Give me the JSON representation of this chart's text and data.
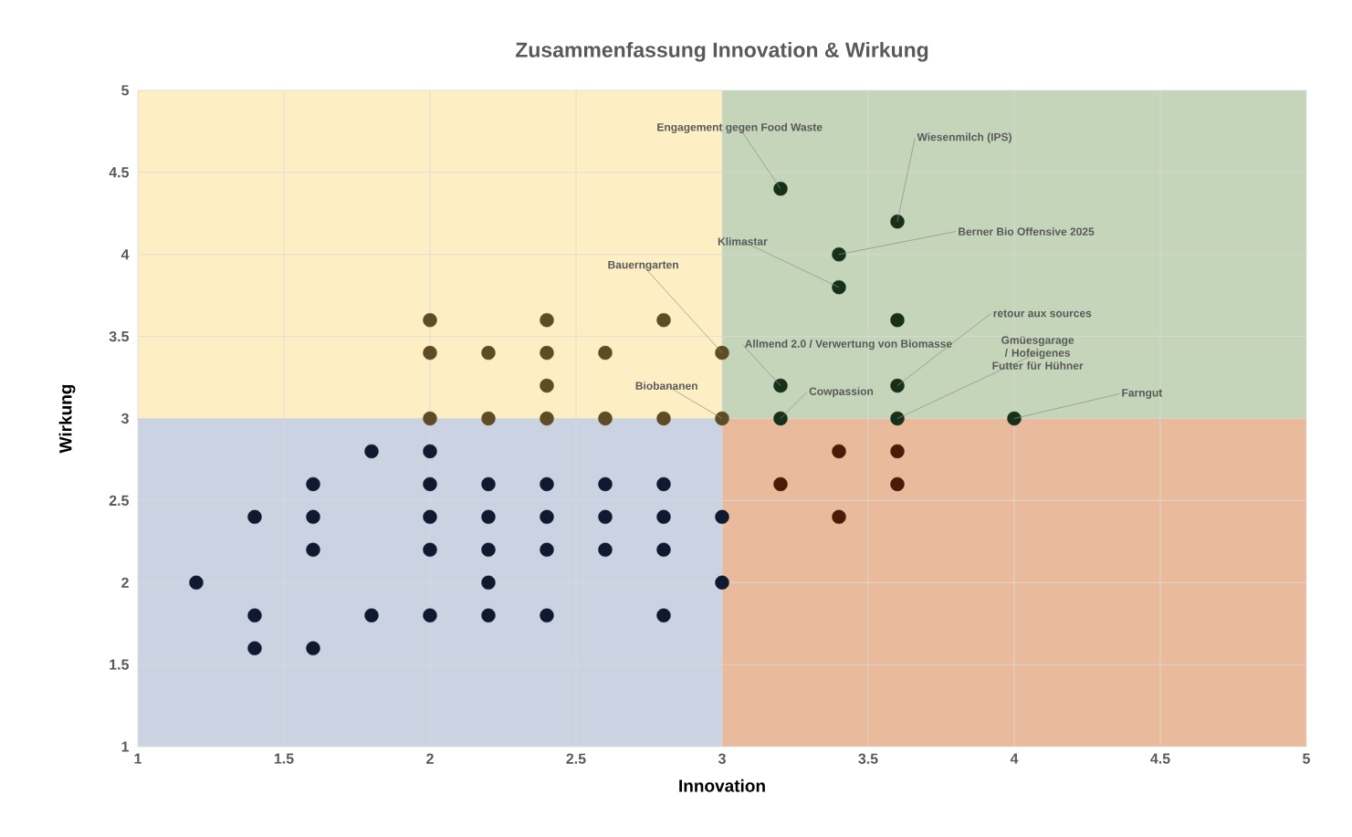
{
  "chart_data": {
    "type": "scatter",
    "title": "Zusammenfassung Innovation & Wirkung",
    "xlabel": "Innovation",
    "ylabel": "Wirkung",
    "xlim": [
      1,
      5
    ],
    "ylim": [
      1,
      5
    ],
    "xticks": [
      1,
      1.5,
      2,
      2.5,
      3,
      3.5,
      4,
      4.5,
      5
    ],
    "yticks": [
      1,
      1.5,
      2,
      2.5,
      3,
      3.5,
      4,
      4.5,
      5
    ],
    "grid": true,
    "series": [
      {
        "type": "area",
        "marker": "none",
        "color": "#fdefc3",
        "x": [
          1,
          3
        ],
        "values": [
          5,
          5
        ]
      },
      {
        "type": "area",
        "marker": "none",
        "color": "#cbd3e3",
        "x": [
          1,
          3
        ],
        "values": [
          3,
          3
        ]
      },
      {
        "type": "area",
        "marker": "none",
        "color": "#c5d5b9",
        "x": [
          3,
          5
        ],
        "values": [
          5,
          5
        ]
      },
      {
        "type": "area",
        "marker": "none",
        "color": "#e9bb9c",
        "x": [
          3,
          5
        ],
        "values": [
          3,
          3
        ]
      },
      {
        "type": "scatter",
        "marker": "circle",
        "color": "#0f1a30",
        "x": [
          1.2,
          1.4,
          1.4,
          1.4,
          1.6,
          1.6,
          1.6,
          1.6,
          1.8,
          1.8,
          2.0,
          2.0,
          2.0,
          2.0,
          2.0,
          2.2,
          2.2,
          2.2,
          2.2,
          2.2,
          2.4,
          2.4,
          2.4,
          2.4,
          2.6,
          2.6,
          2.6,
          2.8,
          2.8,
          2.8,
          2.8,
          3.0,
          3.0
        ],
        "values": [
          2.0,
          2.4,
          1.8,
          1.6,
          2.6,
          2.4,
          2.2,
          1.6,
          2.8,
          1.8,
          2.8,
          2.6,
          2.4,
          2.2,
          1.8,
          2.6,
          2.4,
          2.2,
          2.0,
          1.8,
          2.6,
          2.4,
          2.2,
          1.8,
          2.6,
          2.4,
          2.2,
          2.6,
          2.4,
          2.2,
          1.8,
          2.4,
          2.0
        ]
      },
      {
        "type": "scatter",
        "marker": "circle",
        "color": "#5e4c24",
        "x": [
          2.0,
          2.0,
          2.0,
          2.2,
          2.2,
          2.4,
          2.4,
          2.4,
          2.4,
          2.6,
          2.6,
          2.8,
          2.8,
          3.0,
          3.0
        ],
        "values": [
          3.6,
          3.4,
          3.0,
          3.4,
          3.0,
          3.6,
          3.4,
          3.2,
          3.0,
          3.4,
          3.0,
          3.6,
          3.0,
          3.4,
          3.0
        ]
      },
      {
        "type": "scatter",
        "marker": "circle",
        "color": "#163019",
        "x": [
          3.2,
          3.2,
          3.2,
          3.4,
          3.4,
          3.6,
          3.6,
          3.6,
          3.6,
          4.0
        ],
        "values": [
          4.4,
          3.2,
          3.0,
          4.0,
          3.8,
          4.2,
          3.6,
          3.2,
          3.0,
          3.0
        ]
      },
      {
        "type": "scatter",
        "marker": "circle",
        "color": "#4a1b06",
        "x": [
          3.2,
          3.4,
          3.4,
          3.6,
          3.6
        ],
        "values": [
          2.6,
          2.8,
          2.4,
          2.8,
          2.6
        ]
      }
    ],
    "annotations": [
      {
        "text": "Engagement gegen Food Waste",
        "x": 3.2,
        "y": 4.4
      },
      {
        "text": "Wiesenmilch (IPS)",
        "x": 3.6,
        "y": 4.2
      },
      {
        "text": "Berner Bio Offensive 2025",
        "x": 3.4,
        "y": 4.0
      },
      {
        "text": "Klimastar",
        "x": 3.4,
        "y": 3.8
      },
      {
        "text": "Bauerngarten",
        "x": 3.0,
        "y": 3.4
      },
      {
        "text": "retour aux sources",
        "x": 3.6,
        "y": 3.2
      },
      {
        "text": "Allmend 2.0 / Verwertung von Biomasse",
        "x": 3.2,
        "y": 3.2
      },
      {
        "text": "Gmüesgarage / Hofeigenes Futter für Hühner",
        "x": 3.6,
        "y": 3.0
      },
      {
        "text": "Biobananen",
        "x": 3.0,
        "y": 3.0
      },
      {
        "text": "Cowpassion",
        "x": 3.2,
        "y": 3.0
      },
      {
        "text": "Farngut",
        "x": 4.0,
        "y": 3.0
      }
    ]
  }
}
